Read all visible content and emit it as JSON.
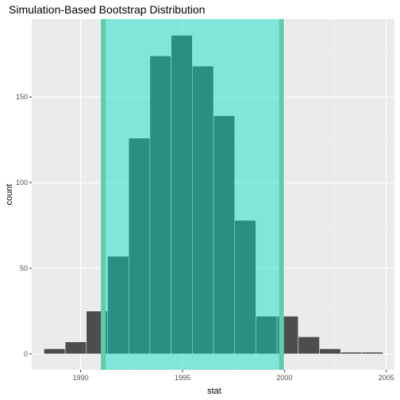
{
  "chart_data": {
    "type": "bar",
    "title": "Simulation-Based Bootstrap Distribution",
    "xlabel": "stat",
    "ylabel": "count",
    "xlim": [
      1987.6,
      2005.4
    ],
    "ylim": [
      -9.3,
      195.5
    ],
    "x_ticks": [
      1990,
      1995,
      2000,
      2005
    ],
    "y_ticks": [
      0,
      50,
      100,
      150
    ],
    "bin_width": 1.04,
    "bins": [
      {
        "x0": 1988.2,
        "x1": 1989.24,
        "count": 3
      },
      {
        "x0": 1989.24,
        "x1": 1990.28,
        "count": 7
      },
      {
        "x0": 1990.28,
        "x1": 1991.32,
        "count": 25
      },
      {
        "x0": 1991.32,
        "x1": 1992.36,
        "count": 57
      },
      {
        "x0": 1992.36,
        "x1": 1993.4,
        "count": 126
      },
      {
        "x0": 1993.4,
        "x1": 1994.44,
        "count": 174
      },
      {
        "x0": 1994.44,
        "x1": 1995.48,
        "count": 186
      },
      {
        "x0": 1995.48,
        "x1": 1996.52,
        "count": 168
      },
      {
        "x0": 1996.52,
        "x1": 1997.56,
        "count": 139
      },
      {
        "x0": 1997.56,
        "x1": 1998.6,
        "count": 78
      },
      {
        "x0": 1998.6,
        "x1": 1999.64,
        "count": 22
      },
      {
        "x0": 1999.64,
        "x1": 2000.68,
        "count": 22
      },
      {
        "x0": 2000.68,
        "x1": 2001.72,
        "count": 10
      },
      {
        "x0": 2001.72,
        "x1": 2002.76,
        "count": 3
      },
      {
        "x0": 2002.76,
        "x1": 2003.8,
        "count": 1
      },
      {
        "x0": 2003.8,
        "x1": 2004.84,
        "count": 1
      }
    ],
    "ci": {
      "lower": 1991.11,
      "upper": 1999.86
    },
    "colors": {
      "panel": "#ebebeb",
      "grid_major": "#ffffff",
      "grid_minor": "#f5f5f5",
      "bar": "#4d4d4d",
      "bar_outline": "#ffffff",
      "ci_fill": "#00ddc6",
      "ci_line": "#5ccfa5"
    },
    "grid": true,
    "legend": "none"
  }
}
